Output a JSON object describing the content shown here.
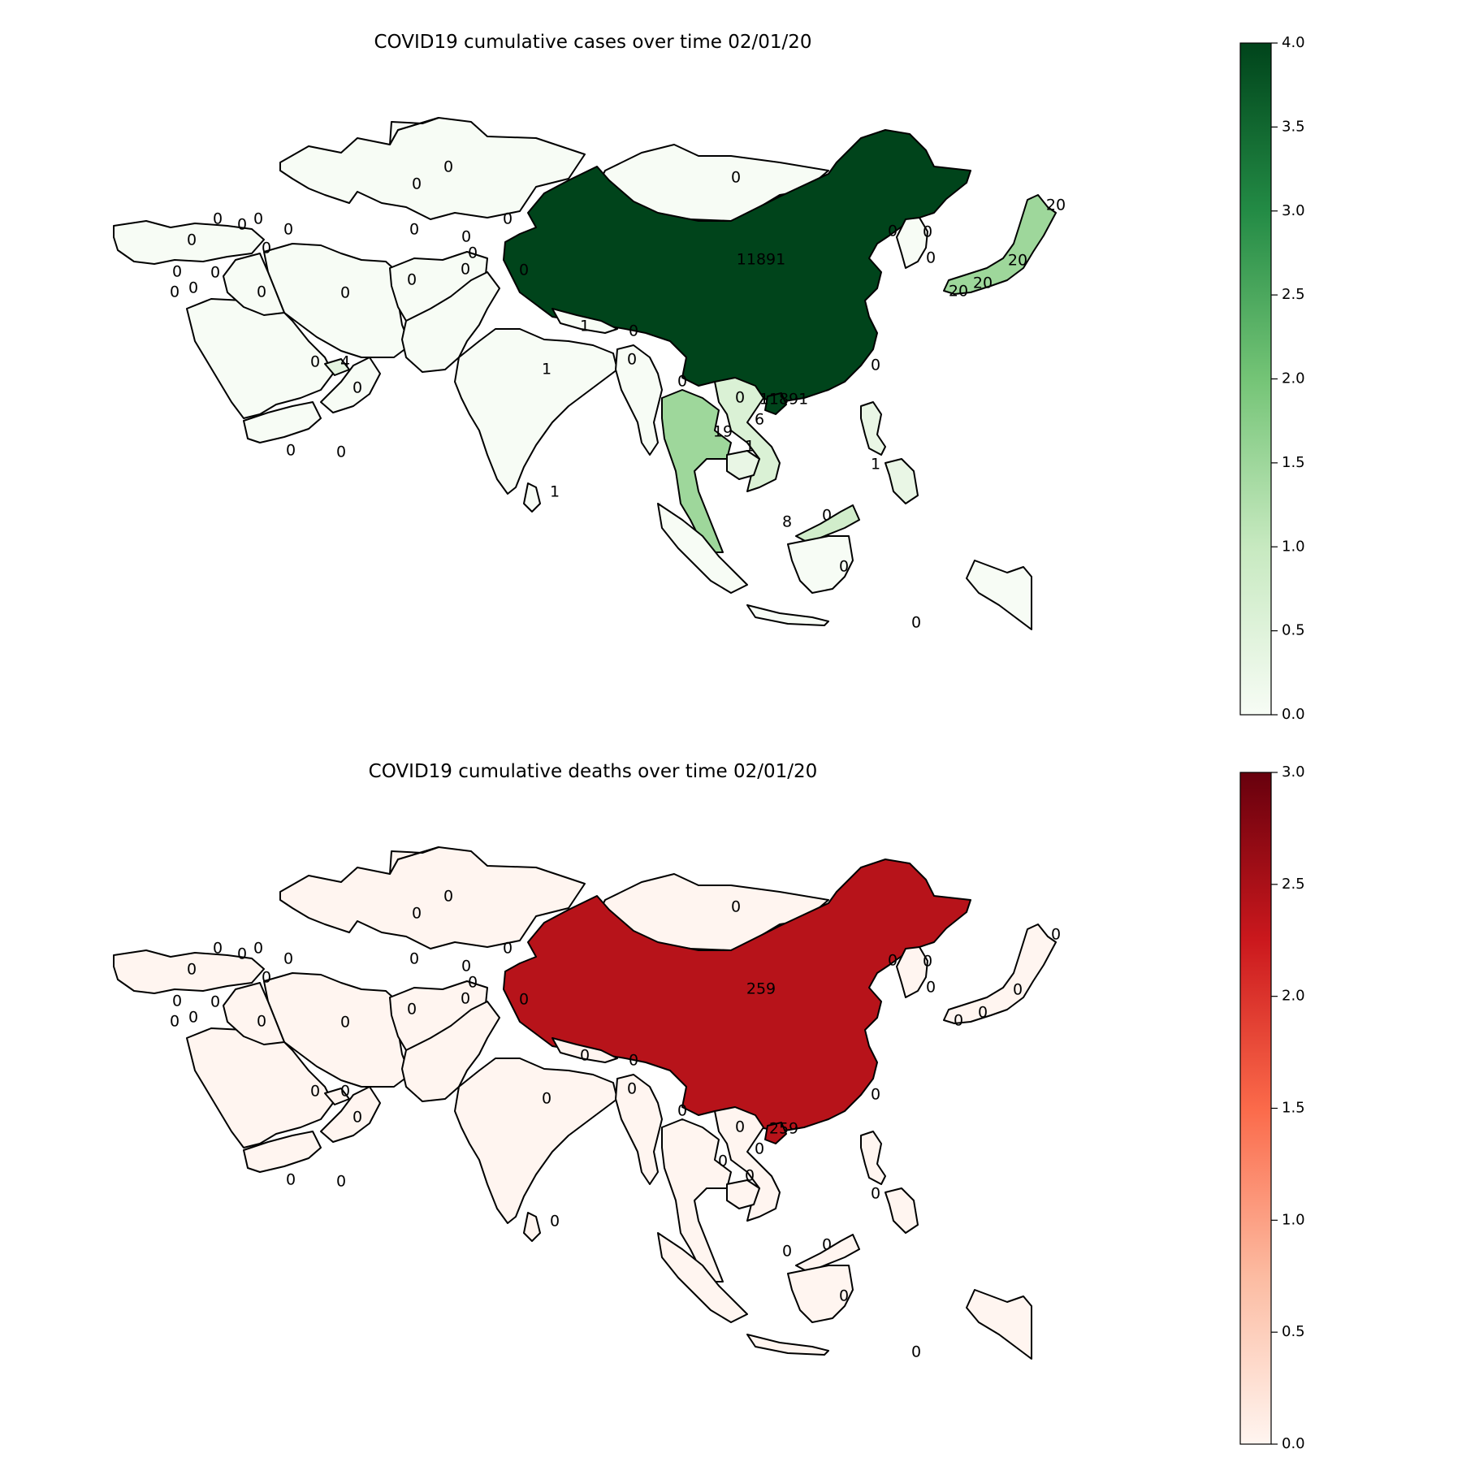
{
  "chart_data": [
    {
      "type": "choropleth",
      "title": "COVID19 cumulative cases over time 02/01/20",
      "colormap": "Greens",
      "colors": {
        "low": "#f7fcf5",
        "high": "#00441b"
      },
      "colorbar": {
        "range": [
          0.0,
          4.0
        ],
        "ticks": [
          "0.0",
          "0.5",
          "1.0",
          "1.5",
          "2.0",
          "2.5",
          "3.0",
          "3.5",
          "4.0"
        ]
      },
      "regions": [
        {
          "id": "kazakhstan",
          "label": "0",
          "level": 0
        },
        {
          "id": "russia-west",
          "label": "0",
          "level": 0
        },
        {
          "id": "mongolia",
          "label": "0",
          "level": 0
        },
        {
          "id": "china",
          "label": "11891",
          "level": 4.0
        },
        {
          "id": "hainan",
          "label": "11891",
          "level": 4.0
        },
        {
          "id": "japan",
          "label": "20",
          "level": 1.5
        },
        {
          "id": "korea",
          "label": "0",
          "level": 0
        },
        {
          "id": "turkey",
          "label": "0",
          "level": 0
        },
        {
          "id": "iran",
          "label": "0",
          "level": 0
        },
        {
          "id": "afghanistan",
          "label": "0",
          "level": 0
        },
        {
          "id": "pakistan",
          "label": "0",
          "level": 0
        },
        {
          "id": "india",
          "label": "1",
          "level": 0
        },
        {
          "id": "sri-lanka",
          "label": "1",
          "level": 0
        },
        {
          "id": "saudi-arabia",
          "label": "0",
          "level": 0
        },
        {
          "id": "yemen",
          "label": "0",
          "level": 0
        },
        {
          "id": "oman",
          "label": "0",
          "level": 0
        },
        {
          "id": "uae",
          "label": "4",
          "level": 0.4
        },
        {
          "id": "iraq",
          "label": "0",
          "level": 0
        },
        {
          "id": "thailand",
          "label": "19",
          "level": 1.5
        },
        {
          "id": "vietnam",
          "label": "6",
          "level": 0.6
        },
        {
          "id": "cambodia",
          "label": "1",
          "level": 0.3
        },
        {
          "id": "malaysia",
          "label": "8",
          "level": 0.8
        },
        {
          "id": "indonesia",
          "label": "0",
          "level": 0
        },
        {
          "id": "myanmar",
          "label": "0",
          "level": 0
        },
        {
          "id": "nepal",
          "label": "1",
          "level": 0
        },
        {
          "id": "philippines",
          "label": "1",
          "level": 0.3
        }
      ]
    },
    {
      "type": "choropleth",
      "title": "COVID19 cumulative deaths over time 02/01/20",
      "colormap": "Reds",
      "colors": {
        "low": "#fff5f0",
        "high": "#67000d"
      },
      "colorbar": {
        "range": [
          0.0,
          3.0
        ],
        "ticks": [
          "0.0",
          "0.5",
          "1.0",
          "1.5",
          "2.0",
          "2.5",
          "3.0"
        ]
      },
      "regions": [
        {
          "id": "china",
          "label": "259",
          "level": 2.4
        },
        {
          "id": "hainan",
          "label": "259",
          "level": 2.4
        },
        {
          "id": "others",
          "label": "0",
          "level": 0
        }
      ]
    }
  ],
  "labels_cases": [
    "0",
    "0",
    "0",
    "0",
    "0",
    "0",
    "0",
    "0",
    "0",
    "0",
    "0",
    "0",
    "0",
    "0",
    "0",
    "0",
    "0",
    "0",
    "0",
    "0",
    "11891",
    "0",
    "0",
    "0",
    "20",
    "20",
    "20",
    "20",
    "0",
    "4",
    "0",
    "0",
    "0",
    "1",
    "1",
    "0",
    "0",
    "0",
    "0",
    "11891",
    "19",
    "6",
    "1",
    "1",
    "8",
    "0",
    "0",
    "0",
    "1",
    "0",
    "0",
    "0"
  ],
  "labels_deaths": [
    "0",
    "0",
    "0",
    "0",
    "0",
    "0",
    "0",
    "0",
    "0",
    "0",
    "0",
    "0",
    "0",
    "0",
    "0",
    "0",
    "0",
    "0",
    "0",
    "0",
    "259",
    "0",
    "0",
    "0",
    "0",
    "0",
    "0",
    "0",
    "0",
    "0",
    "0",
    "0",
    "0",
    "0",
    "0",
    "0",
    "0",
    "0",
    "0",
    "259",
    "0",
    "0",
    "0",
    "0",
    "0",
    "0",
    "0",
    "0",
    "0",
    "0",
    "0",
    "0"
  ]
}
